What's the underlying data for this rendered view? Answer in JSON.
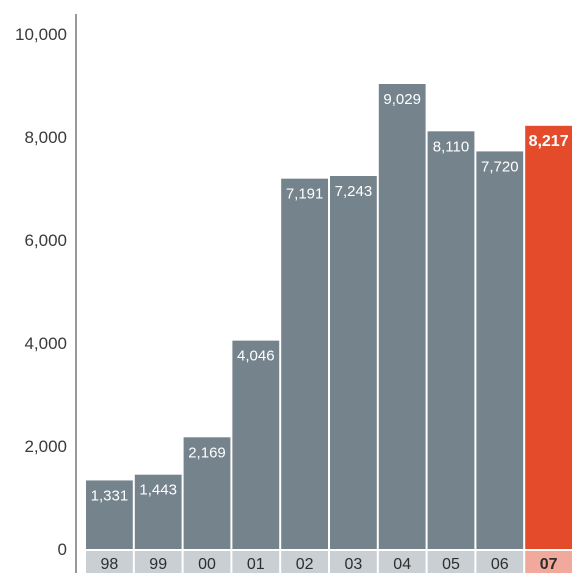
{
  "chart_data": {
    "type": "bar",
    "categories": [
      "98",
      "99",
      "00",
      "01",
      "02",
      "03",
      "04",
      "05",
      "06",
      "07"
    ],
    "values": [
      1331,
      1443,
      2169,
      4046,
      7191,
      7243,
      9029,
      8110,
      7720,
      8217
    ],
    "value_labels": [
      "1,331",
      "1,443",
      "2,169",
      "4,046",
      "7,191",
      "7,243",
      "9,029",
      "8,110",
      "7,720",
      "8,217"
    ],
    "highlight_index": 9,
    "ylim": [
      0,
      10000
    ],
    "yticks": [
      0,
      2000,
      4000,
      6000,
      8000,
      10000
    ],
    "ytick_labels": [
      "0",
      "2,000",
      "4,000",
      "6,000",
      "8,000",
      "10,000"
    ],
    "title": "",
    "xlabel": "",
    "ylabel": "",
    "grid": false,
    "colors": {
      "bar": "#75838c",
      "highlight": "#e44b2a",
      "category_band": "#c9cfd3",
      "category_band_highlight": "#f0a99a",
      "axis": "#555555"
    }
  }
}
